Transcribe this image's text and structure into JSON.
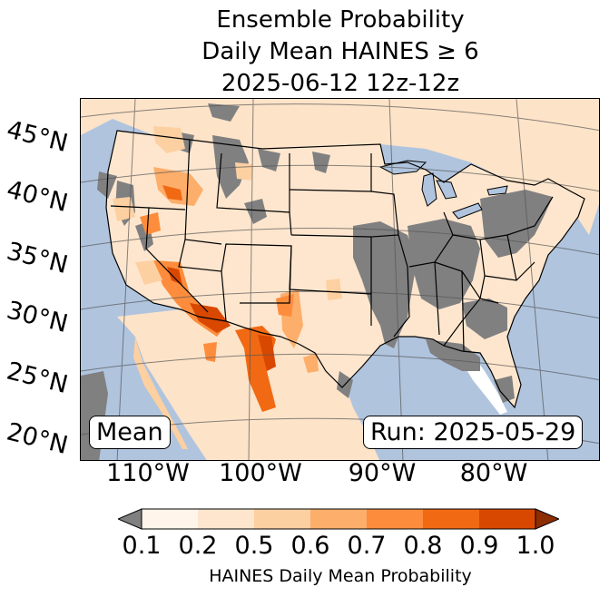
{
  "title": {
    "line1": "Ensemble Probability",
    "line2": "Daily Mean HAINES ≥ 6",
    "line3": "2025-06-12 12z-12z"
  },
  "map": {
    "lat_labels": [
      "45°N",
      "40°N",
      "35°N",
      "30°N",
      "25°N",
      "20°N"
    ],
    "lon_labels": [
      "110°W",
      "100°W",
      "90°W",
      "80°W"
    ],
    "mean_box": "Mean",
    "run_box": "Run: 2025-05-29",
    "colors": {
      "ocean": "#b0c4de",
      "land": "#ffffff",
      "masked": "#808080",
      "boundary": "#000000",
      "gridline": "#555555"
    }
  },
  "colorbar": {
    "ticks": [
      "0.1",
      "0.2",
      "0.5",
      "0.6",
      "0.7",
      "0.8",
      "0.9",
      "1.0"
    ],
    "colors": [
      "#fff5eb",
      "#fee6ce",
      "#fdd0a2",
      "#fdae6b",
      "#fd8d3c",
      "#f16913",
      "#d94801"
    ],
    "under_color": "#808080",
    "over_color": "#8c2d04",
    "label": "HAINES Daily Mean Probability"
  }
}
